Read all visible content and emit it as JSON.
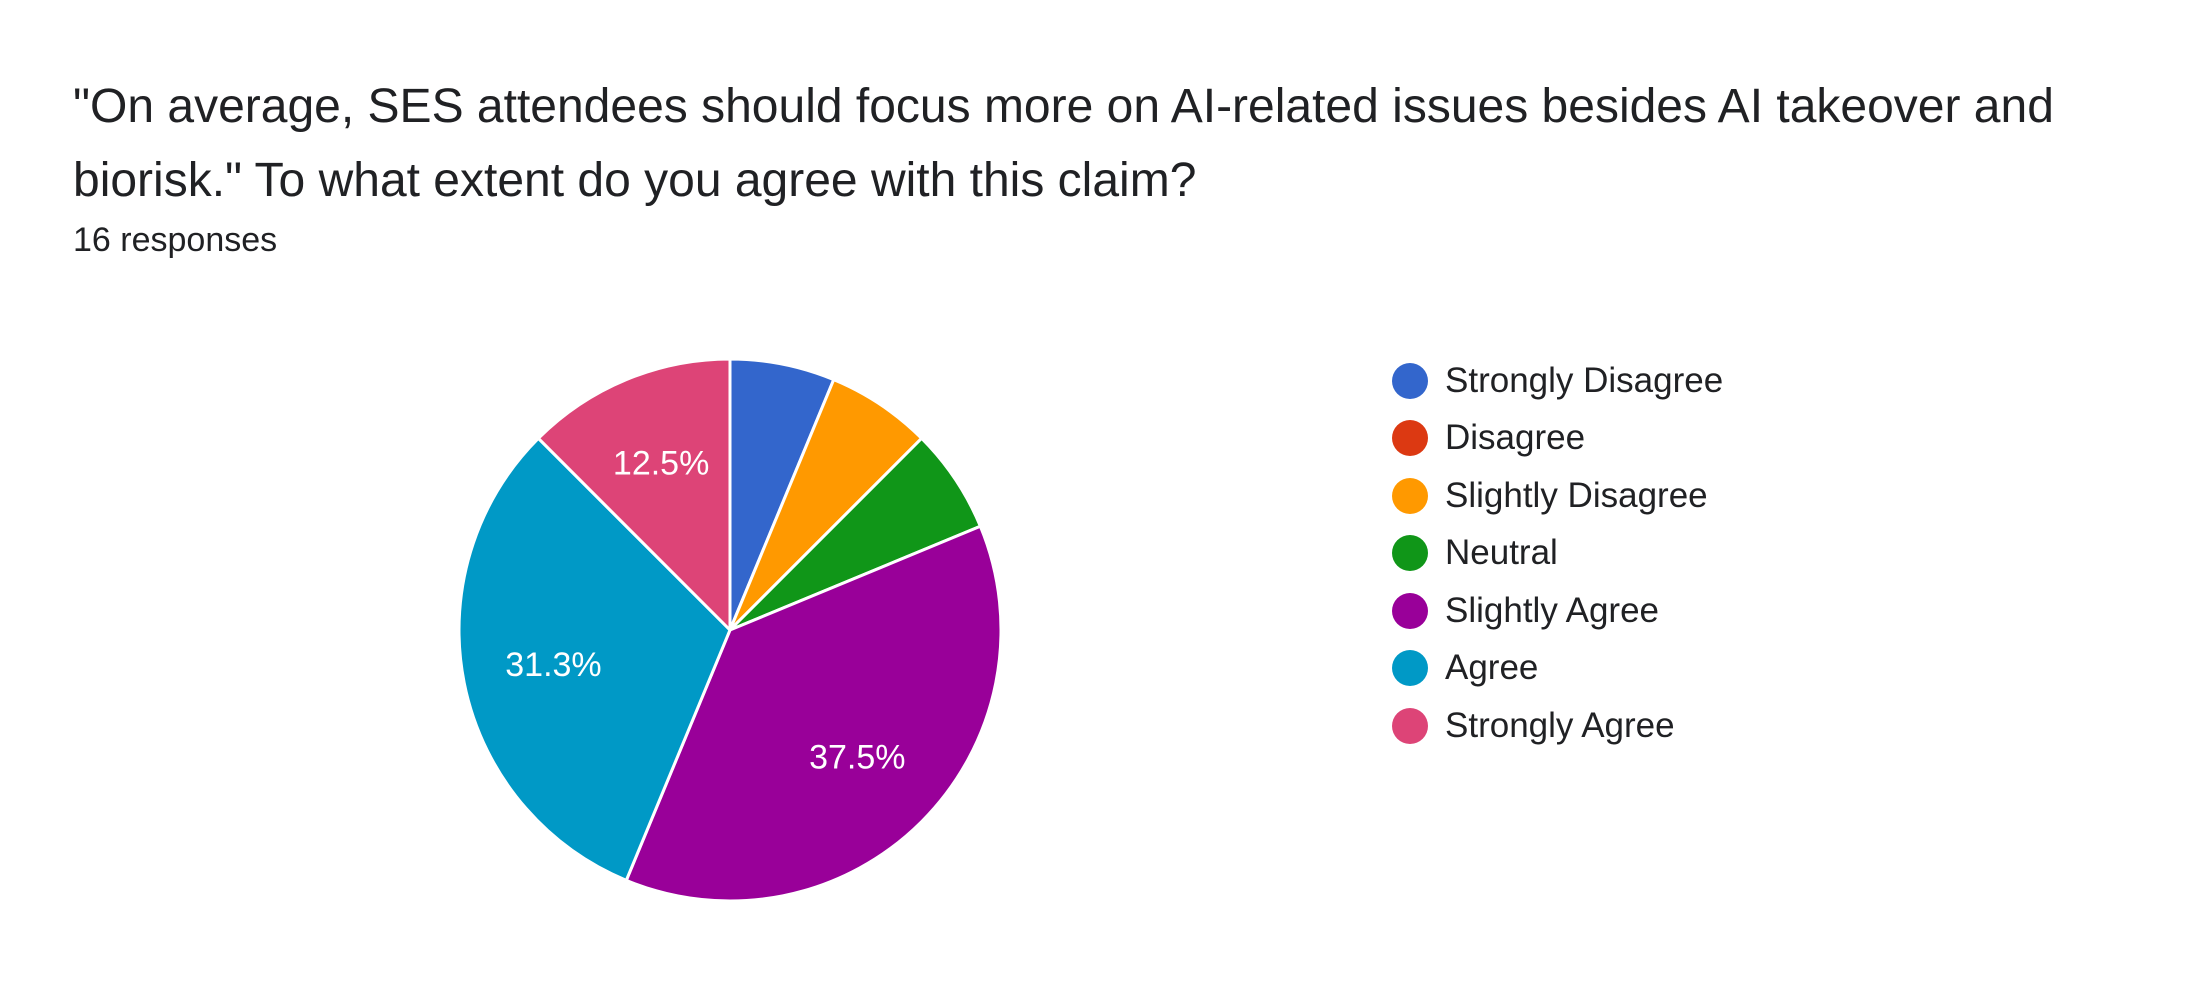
{
  "question": {
    "title": "\"On average, SES attendees should focus more on AI-related issues besides AI takeover and biorisk.\"  To what extent do you agree with this claim?",
    "responses": "16 responses"
  },
  "chart_data": {
    "type": "pie",
    "total_responses": 16,
    "legend_position": "right",
    "start_angle_deg": 90,
    "direction": "clockwise",
    "slices": [
      {
        "label": "Strongly Disagree",
        "count": 1,
        "percent": 6.3,
        "color": "#3366cc",
        "show_label": false,
        "display_label": "6.3%"
      },
      {
        "label": "Disagree",
        "count": 0,
        "percent": 0,
        "color": "#dc3912",
        "show_label": false,
        "display_label": "0%"
      },
      {
        "label": "Slightly Disagree",
        "count": 1,
        "percent": 6.3,
        "color": "#ff9900",
        "show_label": false,
        "display_label": "6.3%"
      },
      {
        "label": "Neutral",
        "count": 1,
        "percent": 6.3,
        "color": "#109618",
        "show_label": false,
        "display_label": "6.3%"
      },
      {
        "label": "Slightly Agree",
        "count": 6,
        "percent": 37.5,
        "color": "#990099",
        "show_label": true,
        "display_label": "37.5%"
      },
      {
        "label": "Agree",
        "count": 5,
        "percent": 31.3,
        "color": "#0099c6",
        "show_label": true,
        "display_label": "31.3%"
      },
      {
        "label": "Strongly Agree",
        "count": 2,
        "percent": 12.5,
        "color": "#dd4477",
        "show_label": true,
        "display_label": "12.5%"
      }
    ]
  }
}
